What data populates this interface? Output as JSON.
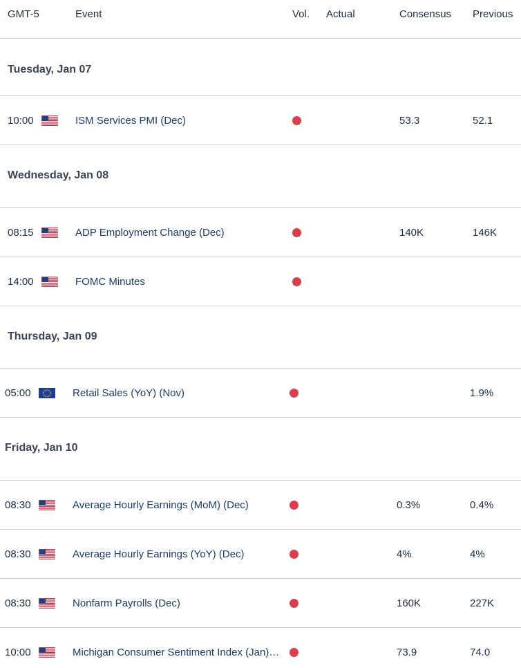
{
  "header": {
    "timezone": "GMT-5",
    "event": "Event",
    "vol": "Vol.",
    "actual": "Actual",
    "consensus": "Consensus",
    "previous": "Previous"
  },
  "colors": {
    "high_volatility": "#df3c4a",
    "event_text": "#1b3a78",
    "divider": "#c9ccd3"
  },
  "days": [
    {
      "label": "Tuesday, Jan 07"
    },
    {
      "label": "Wednesday, Jan 08"
    },
    {
      "label": "Thursday, Jan 09"
    },
    {
      "label": "Friday, Jan 10"
    }
  ],
  "events": [
    {
      "time": "10:00",
      "flag": "us-flag-icon",
      "name": "ISM Services PMI (Dec)",
      "volatility": "high",
      "actual": "",
      "consensus": "53.3",
      "previous": "52.1"
    },
    {
      "time": "08:15",
      "flag": "us-flag-icon",
      "name": "ADP Employment Change (Dec)",
      "volatility": "high",
      "actual": "",
      "consensus": "140K",
      "previous": "146K"
    },
    {
      "time": "14:00",
      "flag": "us-flag-icon",
      "name": "FOMC Minutes",
      "volatility": "high",
      "actual": "",
      "consensus": "",
      "previous": ""
    },
    {
      "time": "05:00",
      "flag": "eu-flag-icon",
      "name": "Retail Sales (YoY) (Nov)",
      "volatility": "high",
      "actual": "",
      "consensus": "",
      "previous": "1.9%"
    },
    {
      "time": "08:30",
      "flag": "us-flag-icon",
      "name": "Average Hourly Earnings (MoM) (Dec)",
      "volatility": "high",
      "actual": "",
      "consensus": "0.3%",
      "previous": "0.4%"
    },
    {
      "time": "08:30",
      "flag": "us-flag-icon",
      "name": "Average Hourly Earnings (YoY) (Dec)",
      "volatility": "high",
      "actual": "",
      "consensus": "4%",
      "previous": "4%"
    },
    {
      "time": "08:30",
      "flag": "us-flag-icon",
      "name": "Nonfarm Payrolls (Dec)",
      "volatility": "high",
      "actual": "",
      "consensus": "160K",
      "previous": "227K"
    },
    {
      "time": "10:00",
      "flag": "us-flag-icon",
      "name": "Michigan Consumer Sentiment Index (Jan)…",
      "volatility": "high",
      "actual": "",
      "consensus": "73.9",
      "previous": "74.0"
    }
  ]
}
